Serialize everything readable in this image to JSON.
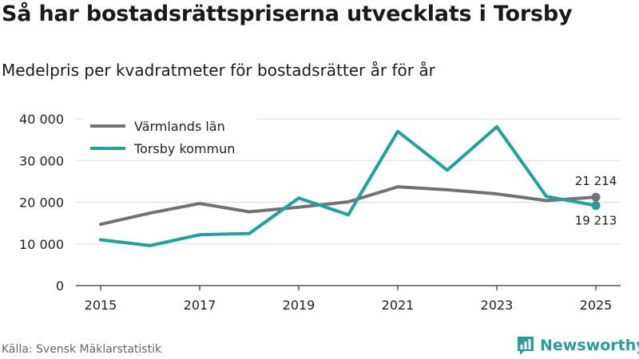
{
  "title": "Så har bostadsrättspriserna utvecklats i Torsby",
  "subtitle": "Medelpris per kvadratmeter för bostadsrätter år för år",
  "source": "Källa: Svensk Mäklarstatistik",
  "brand": {
    "name": "Newsworthy",
    "logo_icon": "bar-chart-logo-icon"
  },
  "colors": {
    "varmland": "#727272",
    "torsby": "#1ba39c",
    "grid": "#dddddd",
    "axis": "#333333",
    "brand": "#2a9d9a"
  },
  "chart_data": {
    "type": "line",
    "title": "Så har bostadsrättspriserna utvecklats i Torsby",
    "subtitle": "Medelpris per kvadratmeter för bostadsrätter år för år",
    "xlabel": "",
    "ylabel": "",
    "x": [
      2015,
      2016,
      2017,
      2018,
      2019,
      2020,
      2021,
      2022,
      2023,
      2024,
      2025
    ],
    "xticks": [
      2015,
      2017,
      2019,
      2021,
      2023,
      2025
    ],
    "xtick_labels": [
      "2015",
      "2017",
      "2019",
      "2021",
      "2023",
      "2025"
    ],
    "yticks": [
      0,
      10000,
      20000,
      30000,
      40000
    ],
    "ytick_labels": [
      "0",
      "10 000",
      "20 000",
      "30 000",
      "40 000"
    ],
    "ylim": [
      0,
      40000
    ],
    "legend_position": "top-left",
    "series": [
      {
        "name": "Värmlands län",
        "color": "#727272",
        "values": [
          14700,
          17400,
          19700,
          17700,
          18800,
          20100,
          23700,
          23000,
          22000,
          20400,
          21214
        ],
        "end_label": "21 214"
      },
      {
        "name": "Torsby kommun",
        "color": "#1ba39c",
        "values": [
          11000,
          9600,
          12200,
          12500,
          21000,
          17000,
          37000,
          27700,
          38100,
          21400,
          19213
        ],
        "end_label": "19 213"
      }
    ]
  }
}
